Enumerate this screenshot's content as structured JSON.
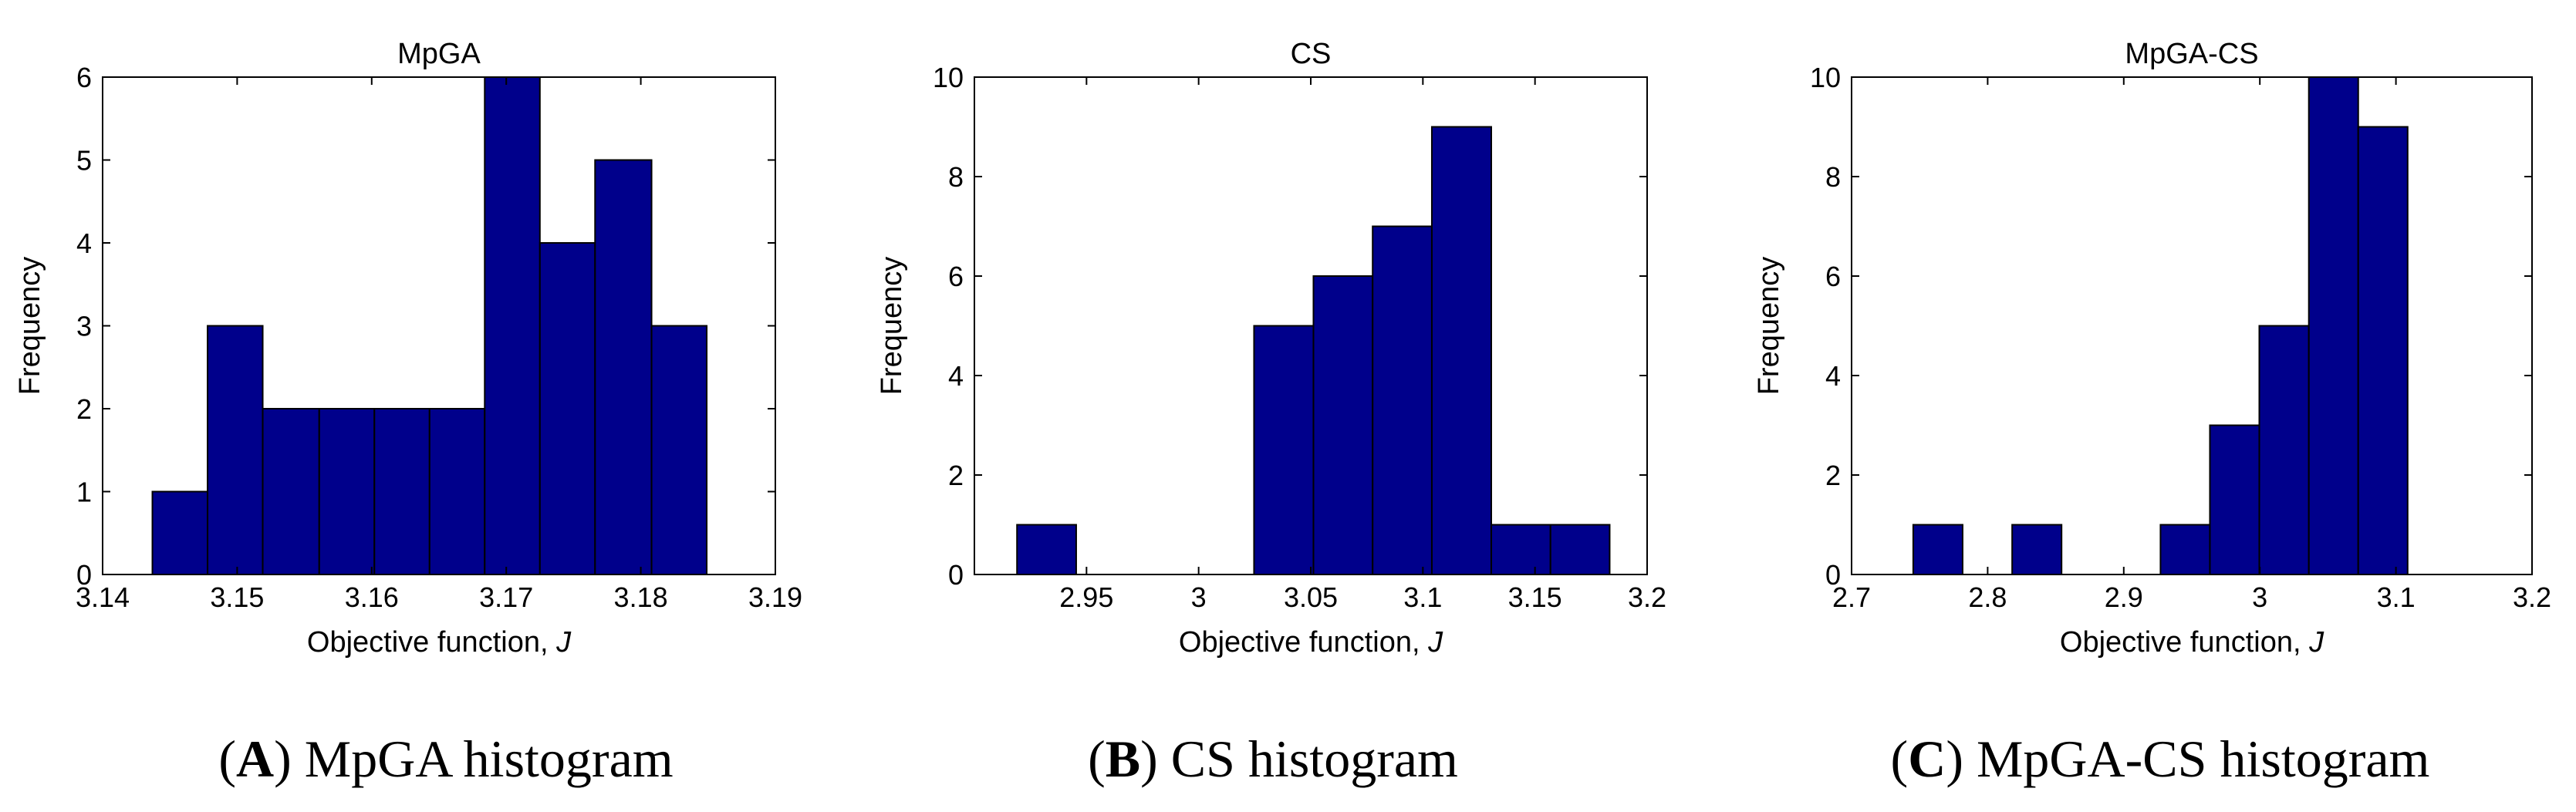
{
  "colors": {
    "bar_fill": "#00008B",
    "bar_stroke": "#000000",
    "axis": "#000000"
  },
  "panels": [
    {
      "caption_letter": "A",
      "caption_text": "MpGA histogram",
      "chart_data": {
        "type": "bar",
        "title": "MpGA",
        "xlabel": "Objective function, ",
        "xlabel_var": "J",
        "ylabel": "Frequency",
        "xlim": [
          3.14,
          3.19
        ],
        "ylim": [
          0,
          6
        ],
        "xticks": [
          3.14,
          3.15,
          3.16,
          3.17,
          3.18,
          3.19
        ],
        "xtick_labels": [
          "3.14",
          "3.15",
          "3.16",
          "3.17",
          "3.18",
          "3.19"
        ],
        "yticks": [
          0,
          1,
          2,
          3,
          4,
          5,
          6
        ],
        "ytick_labels": [
          "0",
          "1",
          "2",
          "3",
          "4",
          "5",
          "6"
        ],
        "bin_edges": [
          3.1437,
          3.1478,
          3.1519,
          3.1561,
          3.1602,
          3.1643,
          3.1684,
          3.1725,
          3.1766,
          3.1808,
          3.1849
        ],
        "values": [
          1,
          3,
          2,
          2,
          2,
          2,
          6,
          4,
          5,
          3
        ]
      }
    },
    {
      "caption_letter": "B",
      "caption_text": "CS histogram",
      "chart_data": {
        "type": "bar",
        "title": "CS",
        "xlabel": "Objective function, ",
        "xlabel_var": "J",
        "ylabel": "Frequency",
        "xlim": [
          2.9,
          3.2
        ],
        "ylim": [
          0,
          10
        ],
        "xticks": [
          2.95,
          3.0,
          3.05,
          3.1,
          3.15,
          3.2
        ],
        "xtick_labels": [
          "2.95",
          "3",
          "3.05",
          "3.1",
          "3.15",
          "3.2"
        ],
        "yticks": [
          0,
          2,
          4,
          6,
          8,
          10
        ],
        "ytick_labels": [
          "0",
          "2",
          "4",
          "6",
          "8",
          "10"
        ],
        "bin_edges": [
          2.919,
          2.9454,
          2.9719,
          2.9983,
          3.0247,
          3.0512,
          3.0776,
          3.104,
          3.1305,
          3.1569,
          3.1833
        ],
        "values": [
          1,
          0,
          0,
          0,
          5,
          6,
          7,
          9,
          1,
          1
        ]
      }
    },
    {
      "caption_letter": "C",
      "caption_text": "MpGA-CS histogram",
      "chart_data": {
        "type": "bar",
        "title": "MpGA-CS",
        "xlabel": "Objective function, ",
        "xlabel_var": "J",
        "ylabel": "Frequency",
        "xlim": [
          2.7,
          3.2
        ],
        "ylim": [
          0,
          10
        ],
        "xticks": [
          2.7,
          2.8,
          2.9,
          3.0,
          3.1,
          3.2
        ],
        "xtick_labels": [
          "2.7",
          "2.8",
          "2.9",
          "3",
          "3.1",
          "3.2"
        ],
        "yticks": [
          0,
          2,
          4,
          6,
          8,
          10
        ],
        "ytick_labels": [
          "0",
          "2",
          "4",
          "6",
          "8",
          "10"
        ],
        "bin_edges": [
          2.7453,
          2.7816,
          2.818,
          2.8543,
          2.8906,
          2.927,
          2.9633,
          2.9996,
          3.036,
          3.0723,
          3.1086
        ],
        "values": [
          1,
          0,
          1,
          0,
          0,
          1,
          3,
          5,
          10,
          9
        ]
      }
    }
  ]
}
